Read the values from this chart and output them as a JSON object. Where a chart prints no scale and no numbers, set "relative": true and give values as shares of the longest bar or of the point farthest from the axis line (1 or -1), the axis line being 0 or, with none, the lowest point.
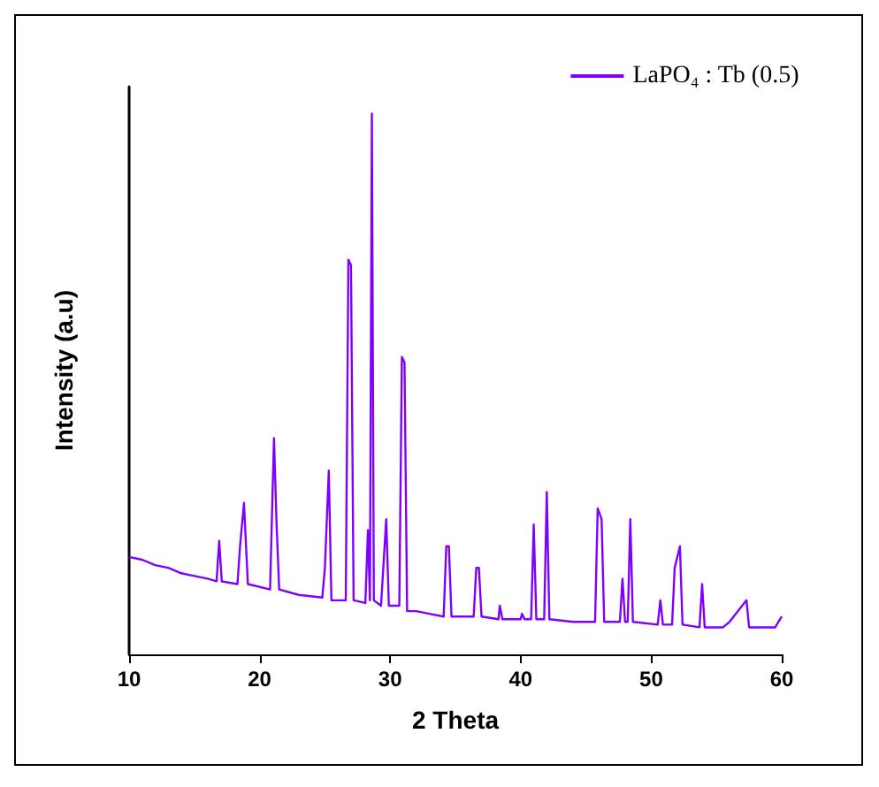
{
  "chart_data": {
    "type": "line",
    "relative": true,
    "xlabel": "2 Theta",
    "ylabel": "Intensity (a.u)",
    "xlim": [
      10,
      60
    ],
    "xticks": [
      10,
      20,
      30,
      40,
      50,
      60
    ],
    "legend": "top right",
    "marker": "none",
    "line_style": "solid",
    "grid": false,
    "series": [
      {
        "name": "LaPO₄ : Tb (0.5)",
        "color": "#7f00ff",
        "x": [
          10,
          11,
          12,
          13,
          14,
          15,
          16,
          16.7,
          16.9,
          17.1,
          18.3,
          18.5,
          18.8,
          19.1,
          20.8,
          21.1,
          21.3,
          21.5,
          23,
          24.8,
          25.0,
          25.3,
          25.5,
          26.6,
          26.8,
          27.0,
          27.2,
          28.1,
          28.3,
          28.45,
          28.6,
          28.75,
          29.3,
          29.7,
          29.9,
          30.7,
          30.9,
          31.1,
          31.3,
          32,
          33,
          34.1,
          34.3,
          34.5,
          34.7,
          36.4,
          36.6,
          36.8,
          37.0,
          38.3,
          38.4,
          38.6,
          40.0,
          40.1,
          40.3,
          40.8,
          41.0,
          41.2,
          41.8,
          42.0,
          42.2,
          44,
          45.7,
          45.9,
          46.2,
          46.4,
          47.6,
          47.8,
          48.0,
          48.2,
          48.4,
          48.6,
          50.5,
          50.7,
          50.9,
          51.6,
          51.8,
          52.2,
          52.4,
          53.7,
          53.9,
          54.1,
          55.5,
          56,
          57.3,
          57.5,
          58.5,
          59.5,
          60
        ],
        "values": [
          0.18,
          0.175,
          0.165,
          0.16,
          0.15,
          0.145,
          0.14,
          0.135,
          0.21,
          0.135,
          0.13,
          0.2,
          0.28,
          0.13,
          0.12,
          0.4,
          0.24,
          0.12,
          0.11,
          0.105,
          0.16,
          0.34,
          0.1,
          0.1,
          0.73,
          0.72,
          0.1,
          0.095,
          0.23,
          0.1,
          1.0,
          0.1,
          0.09,
          0.25,
          0.09,
          0.09,
          0.55,
          0.54,
          0.08,
          0.08,
          0.075,
          0.07,
          0.2,
          0.2,
          0.07,
          0.07,
          0.16,
          0.16,
          0.07,
          0.065,
          0.09,
          0.065,
          0.065,
          0.075,
          0.065,
          0.065,
          0.24,
          0.065,
          0.065,
          0.3,
          0.065,
          0.06,
          0.06,
          0.27,
          0.25,
          0.06,
          0.06,
          0.14,
          0.06,
          0.06,
          0.25,
          0.06,
          0.055,
          0.1,
          0.055,
          0.055,
          0.16,
          0.2,
          0.055,
          0.05,
          0.13,
          0.05,
          0.05,
          0.06,
          0.1,
          0.05,
          0.05,
          0.05,
          0.07
        ]
      }
    ]
  }
}
